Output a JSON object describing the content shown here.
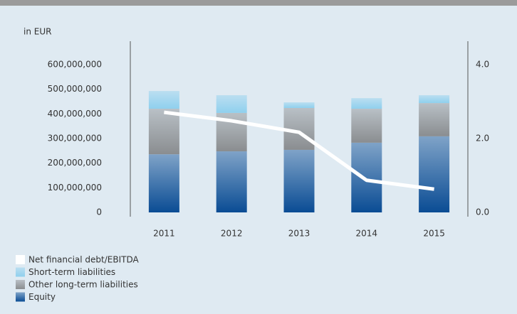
{
  "chart_data": {
    "type": "bar",
    "stacked": true,
    "unit_label": "in EUR",
    "categories": [
      "2011",
      "2012",
      "2013",
      "2014",
      "2015"
    ],
    "series": [
      {
        "name": "Net financial debt/EBITDA",
        "type": "line",
        "axis": "y2",
        "color": "#ffffff",
        "values": [
          2.71,
          2.48,
          2.17,
          0.87,
          0.63
        ]
      },
      {
        "name": "Short-term liabilities",
        "color": "#8fd0ee",
        "values": [
          72000000,
          72000000,
          23000000,
          43000000,
          32000000
        ]
      },
      {
        "name": "Other long-term liabilities",
        "color": "#8a8d90",
        "values": [
          185000000,
          156000000,
          170000000,
          138000000,
          135000000
        ]
      },
      {
        "name": "Equity",
        "color": "#0a4c94",
        "values": [
          236000000,
          248000000,
          254000000,
          283000000,
          309000000
        ]
      }
    ],
    "ylim": [
      0,
      600000000
    ],
    "yticks": [
      0,
      {
        "value": 100000000,
        "label": "100,000,000"
      },
      {
        "value": 200000000,
        "label": "200,000,000"
      },
      {
        "value": 300000000,
        "label": "300,000,000"
      },
      {
        "value": 400000000,
        "label": "400,000,000"
      },
      {
        "value": 500000000,
        "label": "500,000,000"
      },
      {
        "value": 600000000,
        "label": "600,000,000"
      }
    ],
    "y2lim": [
      0,
      4
    ],
    "y2ticks": [
      {
        "value": 0,
        "label": "0.0"
      },
      {
        "value": 2,
        "label": "2.0"
      },
      {
        "value": 4,
        "label": "4.0"
      }
    ]
  }
}
